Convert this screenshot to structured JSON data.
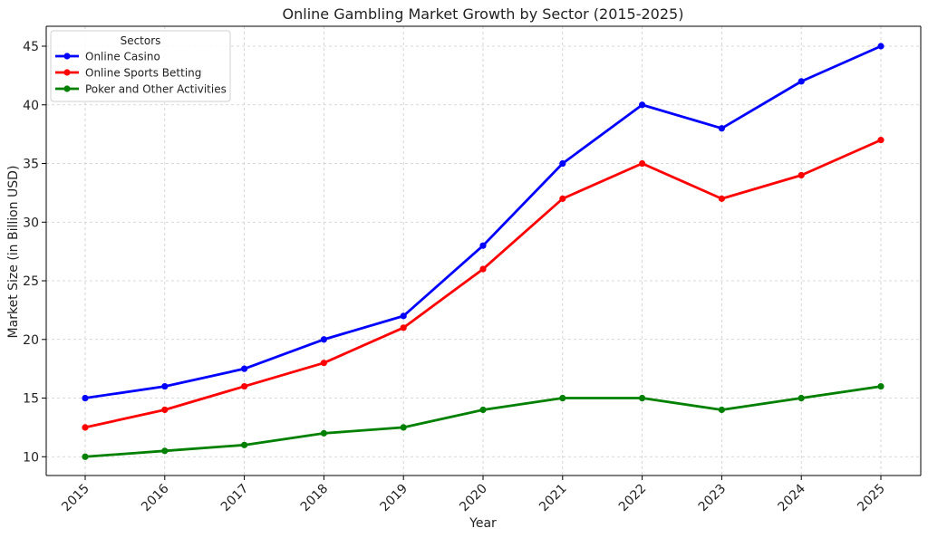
{
  "chart_data": {
    "type": "line",
    "title": "Online Gambling Market Growth by Sector (2015-2025)",
    "xlabel": "Year",
    "ylabel": "Market Size (in Billion USD)",
    "categories": [
      "2015",
      "2016",
      "2017",
      "2018",
      "2019",
      "2020",
      "2021",
      "2022",
      "2023",
      "2024",
      "2025"
    ],
    "ylim": [
      8.4,
      46.7
    ],
    "yticks": [
      10,
      15,
      20,
      25,
      30,
      35,
      40,
      45
    ],
    "ytick_labels": [
      "10",
      "15",
      "20",
      "25",
      "30",
      "35",
      "40",
      "45"
    ],
    "grid": true,
    "legend": {
      "title": "Sectors",
      "placement": "top-left"
    },
    "series": [
      {
        "name": "Online Casino",
        "color": "#0000ff",
        "values": [
          15,
          16,
          17.5,
          20,
          22,
          28,
          35,
          40,
          38,
          42,
          45
        ]
      },
      {
        "name": "Online Sports Betting",
        "color": "#ff0000",
        "values": [
          12.5,
          14,
          16,
          18,
          21,
          26,
          32,
          35,
          32,
          34,
          37
        ]
      },
      {
        "name": "Poker and Other Activities",
        "color": "#008000",
        "values": [
          10,
          10.5,
          11,
          12,
          12.5,
          14,
          15,
          15,
          14,
          15,
          16
        ]
      }
    ]
  }
}
